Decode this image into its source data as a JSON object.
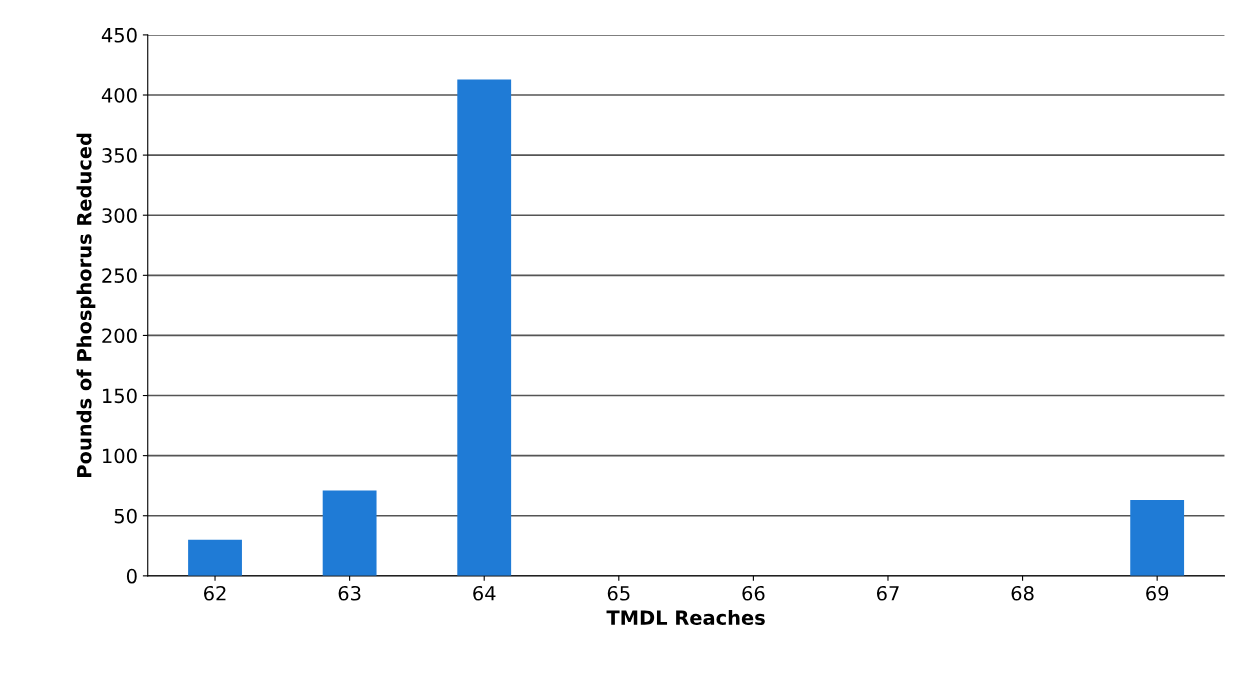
{
  "chart_data": {
    "type": "bar",
    "xlabel": "TMDL Reaches",
    "ylabel": "Pounds of Phosphorus Reduced",
    "categories": [
      "62",
      "63",
      "64",
      "65",
      "66",
      "67",
      "68",
      "69"
    ],
    "values": [
      30,
      71,
      413,
      0,
      0,
      0,
      0,
      63
    ],
    "color": "#1f7bd6",
    "ylim": [
      0,
      450
    ],
    "yticks": [
      0,
      50,
      100,
      150,
      200,
      250,
      300,
      350,
      400,
      450
    ],
    "grid": "y"
  }
}
